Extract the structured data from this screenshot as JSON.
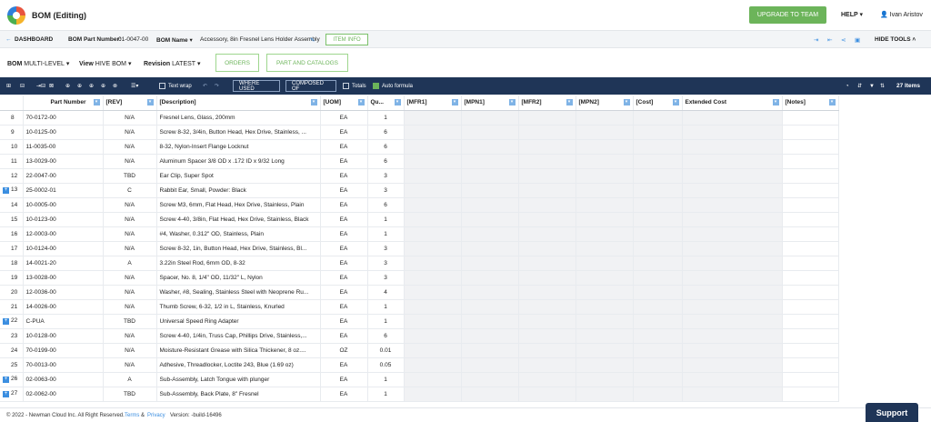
{
  "app": {
    "title": "BOM (Editing)",
    "upgrade": "UPGRADE TO TEAM",
    "help": "HELP",
    "user": "Ivan Aristov"
  },
  "subbar": {
    "back": "DASHBOARD",
    "part_number_label": "BOM Part Number:",
    "part_number": "01-0047-00",
    "bom_name_label": "BOM Name",
    "bom_name": "Accessory, 8in Fresnel Lens Holder Assembly",
    "item_info": "ITEM INFO",
    "hide_tools": "HIDE TOOLS"
  },
  "bar3": {
    "bom_label": "BOM",
    "bom_value": "MULTI-LEVEL",
    "view_label": "View",
    "view_value": "HIVE BOM",
    "revision_label": "Revision",
    "revision_value": "LATEST",
    "orders": "ORDERS",
    "parts": "PART AND CATALOGS"
  },
  "toolbar": {
    "text_wrap": "Text wrap",
    "where_used": "WHERE USED",
    "composed_of": "COMPOSED OF",
    "totals": "Totals",
    "auto_formula": "Auto formula",
    "items": "27 Items"
  },
  "columns": [
    "",
    "Part Number",
    "[REV]",
    "[Description]",
    "[UOM]",
    "Qu...",
    "[MFR1]",
    "[MPN1]",
    "[MFR2]",
    "[MPN2]",
    "[Cost]",
    "Extended Cost",
    "[Notes]"
  ],
  "rows": [
    {
      "idx": "8",
      "pn": "70-0172-00",
      "rev": "N/A",
      "desc": "Fresnel Lens, Glass, 200mm",
      "uom": "EA",
      "qty": "1",
      "exp": false
    },
    {
      "idx": "9",
      "pn": "10-0125-00",
      "rev": "N/A",
      "desc": "Screw 8-32, 3/4in, Button Head, Hex Drive, Stainless, ...",
      "uom": "EA",
      "qty": "6",
      "exp": false
    },
    {
      "idx": "10",
      "pn": "11-0035-00",
      "rev": "N/A",
      "desc": "8-32, Nylon-Insert Flange Locknut",
      "uom": "EA",
      "qty": "6",
      "exp": false
    },
    {
      "idx": "11",
      "pn": "13-0029-00",
      "rev": "N/A",
      "desc": "Aluminum Spacer 3/8 OD x .172 ID x 9/32 Long",
      "uom": "EA",
      "qty": "6",
      "exp": false
    },
    {
      "idx": "12",
      "pn": "22-0047-00",
      "rev": "TBD",
      "desc": "Ear Clip, Super Spot",
      "uom": "EA",
      "qty": "3",
      "exp": false
    },
    {
      "idx": "13",
      "pn": "25-0002-01",
      "rev": "C",
      "desc": "Rabbit Ear, Small, Powder: Black",
      "uom": "EA",
      "qty": "3",
      "exp": true
    },
    {
      "idx": "14",
      "pn": "10-0005-00",
      "rev": "N/A",
      "desc": "Screw M3, 6mm, Flat Head, Hex Drive, Stainless, Plain",
      "uom": "EA",
      "qty": "6",
      "exp": false
    },
    {
      "idx": "15",
      "pn": "10-0123-00",
      "rev": "N/A",
      "desc": "Screw 4-40, 3/8in, Flat Head, Hex Drive, Stainless, Black",
      "uom": "EA",
      "qty": "1",
      "exp": false
    },
    {
      "idx": "16",
      "pn": "12-0003-00",
      "rev": "N/A",
      "desc": "#4, Washer, 0.312\" OD, Stainless, Plain",
      "uom": "EA",
      "qty": "1",
      "exp": false
    },
    {
      "idx": "17",
      "pn": "10-0124-00",
      "rev": "N/A",
      "desc": "Screw 8-32, 1in, Button Head, Hex Drive, Stainless, Bl...",
      "uom": "EA",
      "qty": "3",
      "exp": false
    },
    {
      "idx": "18",
      "pn": "14-0021-20",
      "rev": "A",
      "desc": "3.22in Steel Rod, 6mm OD, 8-32",
      "uom": "EA",
      "qty": "3",
      "exp": false
    },
    {
      "idx": "19",
      "pn": "13-0028-00",
      "rev": "N/A",
      "desc": "Spacer, No. 8, 1/4\" OD, 11/32\" L, Nylon",
      "uom": "EA",
      "qty": "3",
      "exp": false
    },
    {
      "idx": "20",
      "pn": "12-0036-00",
      "rev": "N/A",
      "desc": "Washer, #8, Sealing, Stainless Steel with Neoprene Ru...",
      "uom": "EA",
      "qty": "4",
      "exp": false
    },
    {
      "idx": "21",
      "pn": "14-0026-00",
      "rev": "N/A",
      "desc": "Thumb Screw, 6-32, 1/2 in L, Stainless, Knurled",
      "uom": "EA",
      "qty": "1",
      "exp": false
    },
    {
      "idx": "22",
      "pn": "C-PUA",
      "rev": "TBD",
      "desc": "Universal Speed Ring Adapter",
      "uom": "EA",
      "qty": "1",
      "exp": true
    },
    {
      "idx": "23",
      "pn": "10-0128-00",
      "rev": "N/A",
      "desc": "Screw 4-40, 1/4in, Truss Cap, Phillips Drive, Stainless,...",
      "uom": "EA",
      "qty": "6",
      "exp": false
    },
    {
      "idx": "24",
      "pn": "70-0199-00",
      "rev": "N/A",
      "desc": "Moisture-Resistant Grease with Silica Thickener, 8 oz....",
      "uom": "OZ",
      "qty": "0.01",
      "exp": false
    },
    {
      "idx": "25",
      "pn": "70-0013-00",
      "rev": "N/A",
      "desc": "Adhesive, Threadlocker, Loctite 243, Blue (1.69 oz)",
      "uom": "EA",
      "qty": "0.05",
      "exp": false
    },
    {
      "idx": "26",
      "pn": "02-0063-00",
      "rev": "A",
      "desc": "Sub-Assembly, Latch Tongue with plunger",
      "uom": "EA",
      "qty": "1",
      "exp": true
    },
    {
      "idx": "27",
      "pn": "02-0062-00",
      "rev": "TBD",
      "desc": "Sub-Assembly, Back Plate, 8\" Fresnel",
      "uom": "EA",
      "qty": "1",
      "exp": true
    }
  ],
  "footer": {
    "copyright": "© 2022 - Newman Cloud Inc. All Right Reserved.",
    "terms": "Terms",
    "amp": "&",
    "privacy": "Privacy",
    "version": "Version: -build-16496"
  },
  "support": "Support"
}
